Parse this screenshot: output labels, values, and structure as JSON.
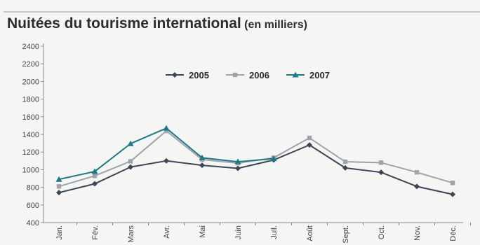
{
  "chart_data": {
    "type": "line",
    "title": "Nuitées du tourisme international",
    "subtitle": "(en milliers)",
    "categories": [
      "Jan.",
      "Fév.",
      "Mars",
      "Avr.",
      "Mai",
      "Juin",
      "Juil.",
      "Août",
      "Sept.",
      "Oct.",
      "Nov.",
      "Déc."
    ],
    "yticks": [
      400,
      600,
      800,
      1000,
      1200,
      1400,
      1600,
      1800,
      2000,
      2200,
      2400
    ],
    "ylim": [
      400,
      2400
    ],
    "grid": false,
    "legend_position": "top-center",
    "series": [
      {
        "name": "2005",
        "color": "#3d4656",
        "marker": "diamond",
        "values": [
          740,
          840,
          1030,
          1100,
          1050,
          1015,
          1110,
          1280,
          1020,
          970,
          810,
          720
        ]
      },
      {
        "name": "2006",
        "color": "#a0a3ab",
        "marker": "square",
        "values": [
          810,
          930,
          1095,
          1440,
          1115,
          1075,
          1135,
          1360,
          1090,
          1080,
          970,
          850
        ]
      },
      {
        "name": "2007",
        "color": "#1c7a86",
        "marker": "triangle",
        "values": [
          890,
          980,
          1295,
          1470,
          1135,
          1090,
          1125,
          null,
          null,
          null,
          null,
          null
        ]
      }
    ]
  }
}
